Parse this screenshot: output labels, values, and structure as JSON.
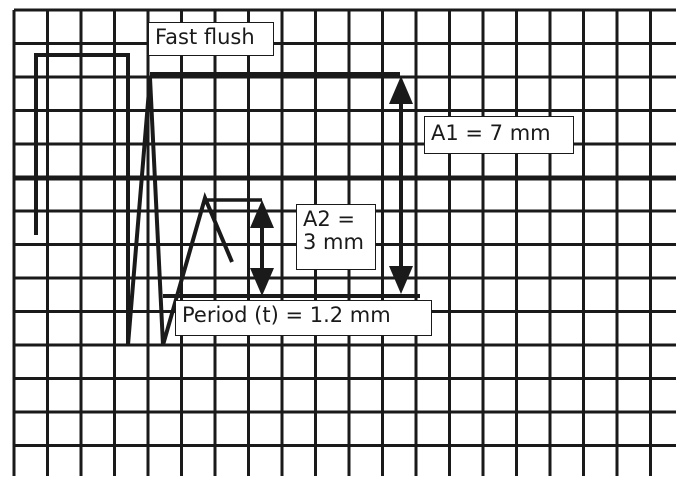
{
  "labels": {
    "fast_flush": "Fast flush",
    "a1": "A1  =  7 mm",
    "a2_line1": "A2  =",
    "a2_line2": "3 mm",
    "period": "Period (t)  =  1.2 mm"
  },
  "colors": {
    "grid": "#1a1a1a",
    "trace": "#1a1a1a",
    "background": "#ffffff"
  }
}
